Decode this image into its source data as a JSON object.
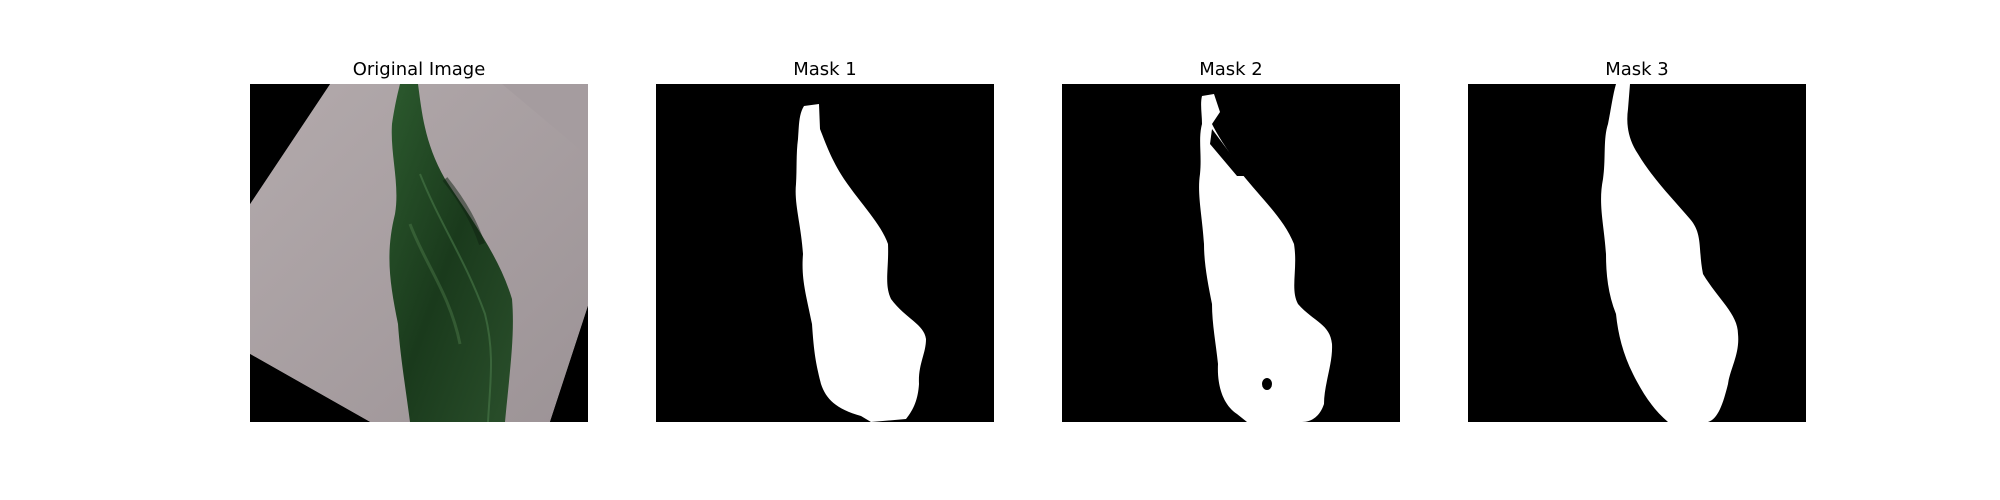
{
  "panels": [
    {
      "title": "Original Image"
    },
    {
      "title": "Mask 1"
    },
    {
      "title": "Mask 2"
    },
    {
      "title": "Mask 3"
    }
  ],
  "colors": {
    "background": "#000000",
    "paper": "#a9a0a3",
    "leaf_dark": "#1b3b1d",
    "leaf_mid": "#2f5a30",
    "mask": "#ffffff"
  }
}
